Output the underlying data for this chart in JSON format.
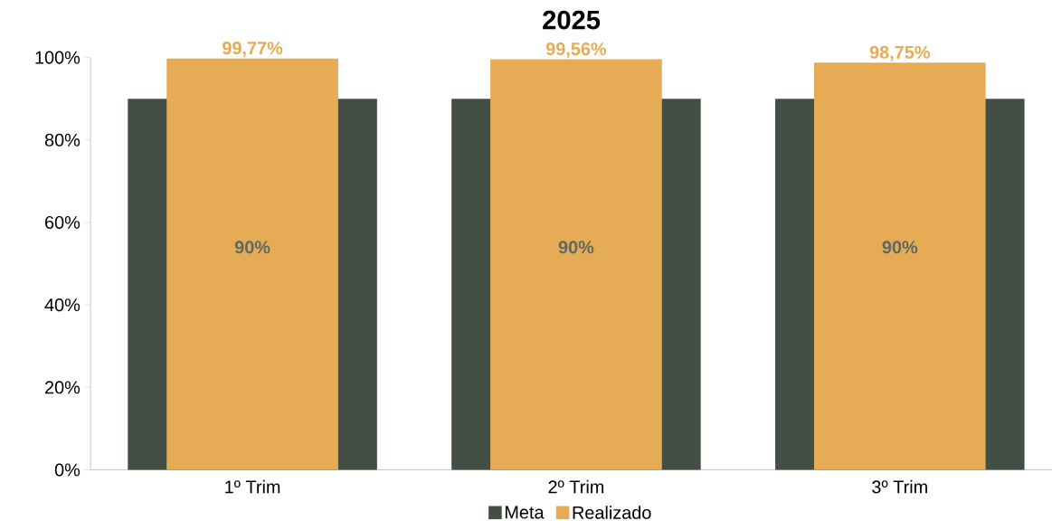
{
  "chart_data": {
    "type": "bar",
    "title": "2025",
    "categories": [
      "1º Trim",
      "2º Trim",
      "3º Trim"
    ],
    "series": [
      {
        "name": "Meta",
        "color": "#434f45",
        "values": [
          90,
          90,
          90
        ],
        "value_labels": [
          "90%",
          "90%",
          "90%"
        ]
      },
      {
        "name": "Realizado",
        "color": "#e5ac55",
        "values": [
          99.77,
          99.56,
          98.75
        ],
        "value_labels": [
          "99,77%",
          "99,56%",
          "98,75%"
        ]
      }
    ],
    "ylim": [
      0,
      100
    ],
    "yticks": [
      {
        "value": 0,
        "label": "0%"
      },
      {
        "value": 20,
        "label": "20%"
      },
      {
        "value": 40,
        "label": "40%"
      },
      {
        "value": 60,
        "label": "60%"
      },
      {
        "value": 80,
        "label": "80%"
      },
      {
        "value": 100,
        "label": "100%"
      }
    ],
    "grid": false,
    "legend": "bottom"
  }
}
